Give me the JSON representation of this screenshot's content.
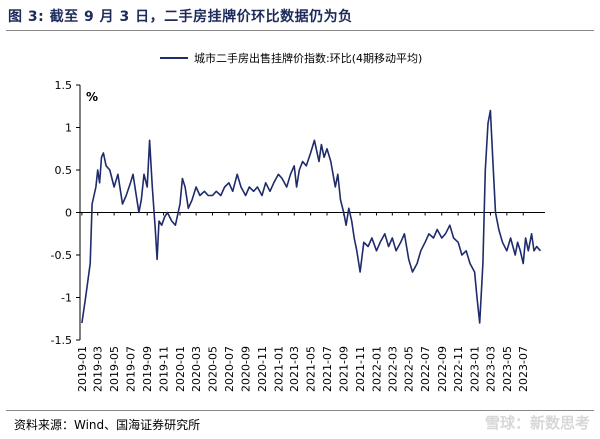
{
  "figure": {
    "title": "图 3:  截至 9 月 3 日，二手房挂牌价环比数据仍为负",
    "source": "资料来源：Wind、国海证券研究所",
    "watermark": "雪球：新数思考"
  },
  "chart_data": {
    "type": "line",
    "title": "",
    "xlabel": "",
    "ylabel": "%",
    "ylim": [
      -1.5,
      1.5
    ],
    "yticks": [
      -1.5,
      -1,
      -0.5,
      0,
      0.5,
      1,
      1.5
    ],
    "x_categories": [
      "2019-01",
      "2019-03",
      "2019-05",
      "2019-07",
      "2019-09",
      "2019-11",
      "2020-01",
      "2020-03",
      "2020-05",
      "2020-07",
      "2020-09",
      "2020-11",
      "2021-01",
      "2021-03",
      "2021-05",
      "2021-07",
      "2021-09",
      "2021-11",
      "2022-01",
      "2022-03",
      "2022-05",
      "2022-07",
      "2022-09",
      "2022-11",
      "2023-01",
      "2023-03",
      "2023-05",
      "2023-07"
    ],
    "grid": false,
    "legend_position": "top",
    "series": [
      {
        "name": "城市二手房出售挂牌价指数:环比(4期移动平均)",
        "color": "#1f2b6b",
        "points": [
          [
            "2019-01-01",
            -1.3
          ],
          [
            "2019-01-15",
            -1.0
          ],
          [
            "2019-02-01",
            -0.6
          ],
          [
            "2019-02-08",
            0.1
          ],
          [
            "2019-02-22",
            0.3
          ],
          [
            "2019-03-01",
            0.5
          ],
          [
            "2019-03-08",
            0.35
          ],
          [
            "2019-03-15",
            0.65
          ],
          [
            "2019-03-22",
            0.7
          ],
          [
            "2019-04-01",
            0.55
          ],
          [
            "2019-04-15",
            0.5
          ],
          [
            "2019-05-01",
            0.3
          ],
          [
            "2019-05-15",
            0.45
          ],
          [
            "2019-06-01",
            0.1
          ],
          [
            "2019-06-15",
            0.2
          ],
          [
            "2019-07-01",
            0.35
          ],
          [
            "2019-07-10",
            0.45
          ],
          [
            "2019-07-20",
            0.25
          ],
          [
            "2019-08-01",
            0.0
          ],
          [
            "2019-08-10",
            0.15
          ],
          [
            "2019-08-20",
            0.45
          ],
          [
            "2019-09-01",
            0.3
          ],
          [
            "2019-09-10",
            0.85
          ],
          [
            "2019-09-20",
            0.3
          ],
          [
            "2019-10-01",
            -0.2
          ],
          [
            "2019-10-08",
            -0.55
          ],
          [
            "2019-10-15",
            -0.1
          ],
          [
            "2019-10-25",
            -0.15
          ],
          [
            "2019-11-05",
            -0.05
          ],
          [
            "2019-11-15",
            0.0
          ],
          [
            "2019-12-01",
            -0.1
          ],
          [
            "2019-12-15",
            -0.15
          ],
          [
            "2020-01-01",
            0.1
          ],
          [
            "2020-01-10",
            0.4
          ],
          [
            "2020-01-20",
            0.3
          ],
          [
            "2020-02-01",
            0.05
          ],
          [
            "2020-02-15",
            0.15
          ],
          [
            "2020-03-01",
            0.3
          ],
          [
            "2020-03-15",
            0.2
          ],
          [
            "2020-04-01",
            0.25
          ],
          [
            "2020-04-15",
            0.2
          ],
          [
            "2020-05-01",
            0.2
          ],
          [
            "2020-05-15",
            0.25
          ],
          [
            "2020-06-01",
            0.2
          ],
          [
            "2020-06-15",
            0.3
          ],
          [
            "2020-07-01",
            0.35
          ],
          [
            "2020-07-15",
            0.25
          ],
          [
            "2020-08-01",
            0.45
          ],
          [
            "2020-08-15",
            0.3
          ],
          [
            "2020-09-01",
            0.2
          ],
          [
            "2020-09-15",
            0.3
          ],
          [
            "2020-10-01",
            0.25
          ],
          [
            "2020-10-15",
            0.3
          ],
          [
            "2020-11-01",
            0.2
          ],
          [
            "2020-11-15",
            0.35
          ],
          [
            "2020-12-01",
            0.25
          ],
          [
            "2020-12-15",
            0.35
          ],
          [
            "2021-01-01",
            0.45
          ],
          [
            "2021-01-15",
            0.4
          ],
          [
            "2021-02-01",
            0.3
          ],
          [
            "2021-02-15",
            0.45
          ],
          [
            "2021-03-01",
            0.55
          ],
          [
            "2021-03-10",
            0.3
          ],
          [
            "2021-03-20",
            0.5
          ],
          [
            "2021-04-01",
            0.6
          ],
          [
            "2021-04-15",
            0.55
          ],
          [
            "2021-05-01",
            0.7
          ],
          [
            "2021-05-15",
            0.85
          ],
          [
            "2021-06-01",
            0.6
          ],
          [
            "2021-06-10",
            0.8
          ],
          [
            "2021-06-20",
            0.65
          ],
          [
            "2021-07-01",
            0.75
          ],
          [
            "2021-07-15",
            0.6
          ],
          [
            "2021-08-01",
            0.3
          ],
          [
            "2021-08-10",
            0.45
          ],
          [
            "2021-08-20",
            0.15
          ],
          [
            "2021-09-01",
            0.0
          ],
          [
            "2021-09-10",
            -0.15
          ],
          [
            "2021-09-20",
            0.05
          ],
          [
            "2021-10-01",
            -0.1
          ],
          [
            "2021-10-10",
            -0.3
          ],
          [
            "2021-10-20",
            -0.45
          ],
          [
            "2021-11-01",
            -0.7
          ],
          [
            "2021-11-15",
            -0.35
          ],
          [
            "2021-12-01",
            -0.4
          ],
          [
            "2021-12-15",
            -0.3
          ],
          [
            "2022-01-01",
            -0.45
          ],
          [
            "2022-01-15",
            -0.35
          ],
          [
            "2022-02-01",
            -0.25
          ],
          [
            "2022-02-15",
            -0.4
          ],
          [
            "2022-03-01",
            -0.3
          ],
          [
            "2022-03-15",
            -0.45
          ],
          [
            "2022-04-01",
            -0.35
          ],
          [
            "2022-04-15",
            -0.25
          ],
          [
            "2022-05-01",
            -0.55
          ],
          [
            "2022-05-15",
            -0.7
          ],
          [
            "2022-06-01",
            -0.6
          ],
          [
            "2022-06-15",
            -0.45
          ],
          [
            "2022-07-01",
            -0.35
          ],
          [
            "2022-07-15",
            -0.25
          ],
          [
            "2022-08-01",
            -0.3
          ],
          [
            "2022-08-15",
            -0.2
          ],
          [
            "2022-09-01",
            -0.3
          ],
          [
            "2022-09-15",
            -0.25
          ],
          [
            "2022-10-01",
            -0.15
          ],
          [
            "2022-10-15",
            -0.3
          ],
          [
            "2022-11-01",
            -0.35
          ],
          [
            "2022-11-15",
            -0.5
          ],
          [
            "2022-12-01",
            -0.45
          ],
          [
            "2022-12-15",
            -0.6
          ],
          [
            "2023-01-01",
            -0.7
          ],
          [
            "2023-01-10",
            -1.0
          ],
          [
            "2023-01-20",
            -1.3
          ],
          [
            "2023-02-01",
            -0.6
          ],
          [
            "2023-02-10",
            0.5
          ],
          [
            "2023-02-20",
            1.05
          ],
          [
            "2023-03-01",
            1.2
          ],
          [
            "2023-03-10",
            0.6
          ],
          [
            "2023-03-20",
            0.0
          ],
          [
            "2023-04-01",
            -0.2
          ],
          [
            "2023-04-15",
            -0.35
          ],
          [
            "2023-05-01",
            -0.45
          ],
          [
            "2023-05-15",
            -0.3
          ],
          [
            "2023-06-01",
            -0.5
          ],
          [
            "2023-06-10",
            -0.35
          ],
          [
            "2023-06-20",
            -0.45
          ],
          [
            "2023-07-01",
            -0.6
          ],
          [
            "2023-07-10",
            -0.3
          ],
          [
            "2023-07-20",
            -0.45
          ],
          [
            "2023-08-01",
            -0.25
          ],
          [
            "2023-08-10",
            -0.45
          ],
          [
            "2023-08-20",
            -0.4
          ],
          [
            "2023-09-03",
            -0.45
          ]
        ]
      }
    ]
  }
}
